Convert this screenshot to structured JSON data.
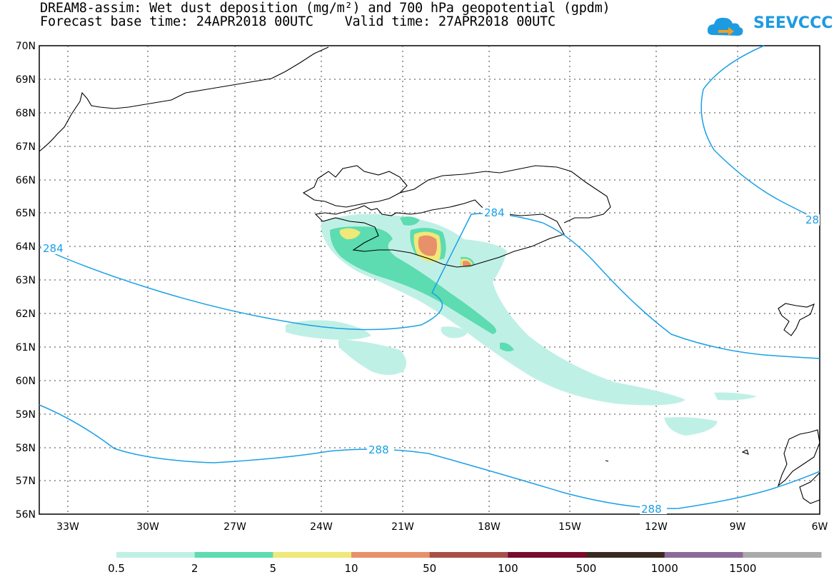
{
  "header": {
    "title_line1": "DREAM8-assim: Wet dust deposition (mg/m²) and 700 hPa geopotential (gpdm)",
    "title_line2": "Forecast base time: 24APR2018 00UTC    Valid time: 27APR2018 00UTC",
    "logo_text": "SEEVCCC"
  },
  "map": {
    "lat_labels": [
      "70N",
      "69N",
      "68N",
      "67N",
      "66N",
      "65N",
      "64N",
      "63N",
      "62N",
      "61N",
      "60N",
      "59N",
      "58N",
      "57N",
      "56N"
    ],
    "lon_labels": [
      "33W",
      "30W",
      "27W",
      "24W",
      "21W",
      "18W",
      "15W",
      "12W",
      "9W",
      "6W"
    ],
    "contour_labels": [
      "284",
      "284",
      "28",
      "288",
      "288"
    ],
    "colors": {
      "coast": "#000000",
      "contour": "#1aa0e6",
      "grid": "#444444"
    }
  },
  "legend": {
    "labels": [
      "0.5",
      "2",
      "5",
      "10",
      "50",
      "100",
      "500",
      "1000",
      "1500"
    ],
    "colors": [
      "#bff0e6",
      "#5cdcb0",
      "#f0e878",
      "#e8906a",
      "#a85048",
      "#7a0a2e",
      "#3a2a1e",
      "#8a6a98",
      "#aaaaaa"
    ]
  }
}
